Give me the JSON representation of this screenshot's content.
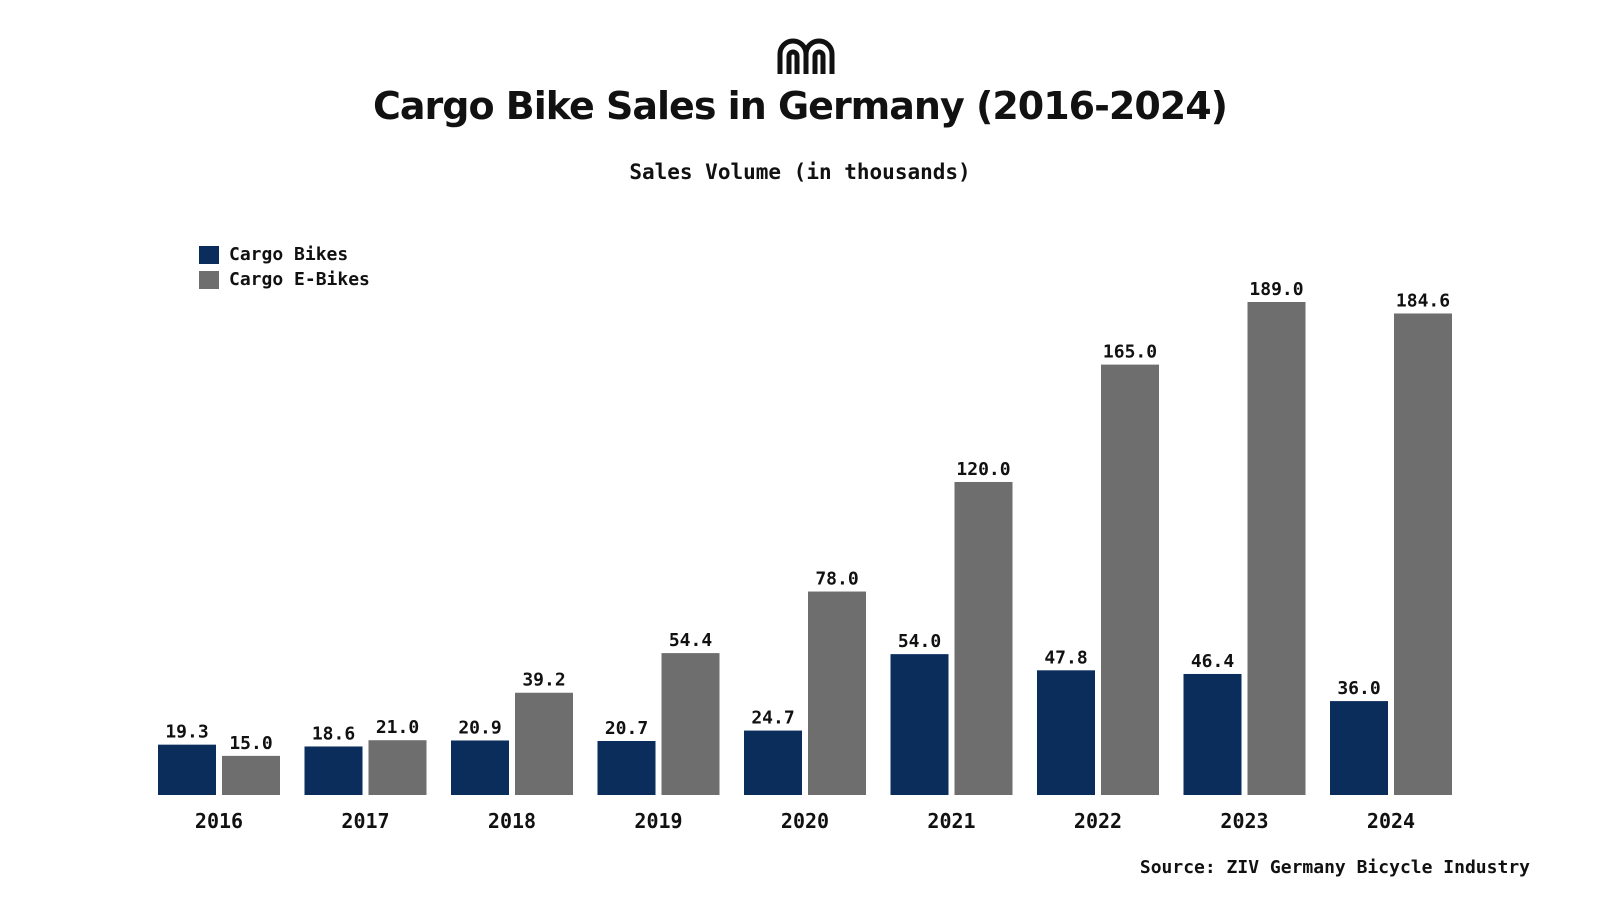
{
  "title": "Cargo Bike Sales in Germany (2016-2024)",
  "subtitle": "Sales Volume (in thousands)",
  "source": "Source: ZIV Germany Bicycle Industry",
  "logo_icon": "double-arch-m-logo",
  "colors": {
    "cargo_bikes": "#0a2d5c",
    "cargo_ebikes": "#6e6e6e"
  },
  "legend": [
    {
      "label": "Cargo Bikes",
      "color": "#0a2d5c"
    },
    {
      "label": "Cargo E-Bikes",
      "color": "#6e6e6e"
    }
  ],
  "chart_data": {
    "type": "bar",
    "title": "Cargo Bike Sales in Germany (2016-2024)",
    "subtitle": "Sales Volume (in thousands)",
    "categories": [
      "2016",
      "2017",
      "2018",
      "2019",
      "2020",
      "2021",
      "2022",
      "2023",
      "2024"
    ],
    "series": [
      {
        "name": "Cargo Bikes",
        "color": "#0a2d5c",
        "values": [
          19.3,
          18.6,
          20.9,
          20.7,
          24.7,
          54.0,
          47.8,
          46.4,
          36.0
        ],
        "labels": [
          "19.3",
          "18.6",
          "20.9",
          "20.7",
          "24.7",
          "54.0",
          "47.8",
          "46.4",
          "36.0"
        ]
      },
      {
        "name": "Cargo E-Bikes",
        "color": "#6e6e6e",
        "values": [
          15.0,
          21.0,
          39.2,
          54.4,
          78.0,
          120.0,
          165.0,
          189.0,
          184.6
        ],
        "labels": [
          "15.0",
          "21.0",
          "39.2",
          "54.4",
          "78.0",
          "120.0",
          "165.0",
          "189.0",
          "184.6"
        ]
      }
    ],
    "xlabel": "",
    "ylabel": "",
    "ylim": [
      0,
      189.0
    ],
    "grid": false,
    "y_axis_visible": false,
    "legend_position": "top-left"
  }
}
